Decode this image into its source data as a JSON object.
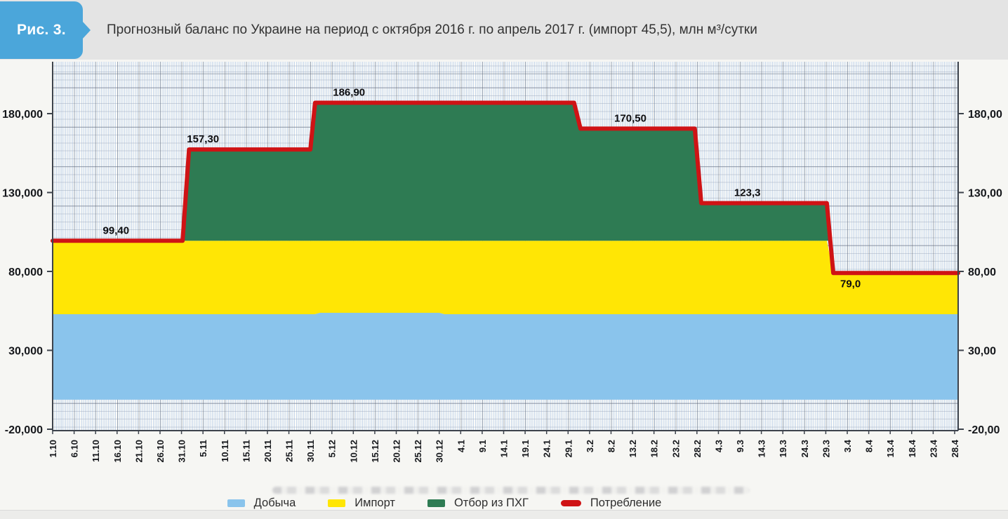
{
  "figure": {
    "badge": "Рис. 3.",
    "title": "Прогнозный баланс по Украине на период с октября 2016 г. по апрель 2017 г. (импорт 45,5), млн м³/сутки"
  },
  "colors": {
    "badge_blue": "#4ba6da",
    "header_bg": "#e4e4e4",
    "production_area": "#8ac4ec",
    "import_area": "#ffe605",
    "storage_area": "#2e7b53",
    "consumption_line": "#cf1315",
    "axis": "#3d434c"
  },
  "chart_data": {
    "type": "area",
    "title": "Прогнозный баланс по Украине на период с октября 2016 г. по апрель 2017 г. (импорт 45,5), млн м³/сутки",
    "unit": "млн м³/сутки",
    "grid": "graph-paper",
    "legend_position": "bottom",
    "x_tick_labels": [
      "1.10",
      "6.10",
      "11.10",
      "16.10",
      "21.10",
      "26.10",
      "31.10",
      "5.11",
      "10.11",
      "15.11",
      "20.11",
      "25.11",
      "30.11",
      "5.12",
      "10.12",
      "15.12",
      "20.12",
      "25.12",
      "30.12",
      "4.1",
      "9.1",
      "14.1",
      "19.1",
      "24.1",
      "29.1",
      "3.2",
      "8.2",
      "13.2",
      "18.2",
      "23.2",
      "28.2",
      "4.3",
      "9.3",
      "14.3",
      "19.3",
      "24.3",
      "29.3",
      "3.4",
      "8.4",
      "13.4",
      "18.4",
      "23.4",
      "28.4"
    ],
    "y_axis": {
      "tick_values": [
        180,
        130,
        80,
        30,
        -20
      ],
      "left_labels": [
        "180,000",
        "130,000",
        "80,000",
        "30,000",
        "-20,000"
      ],
      "right_labels": [
        "180,00",
        "130,00",
        "80,00",
        "30,00",
        "-20,00"
      ],
      "ylim": [
        -20,
        213
      ]
    },
    "series": [
      {
        "id": "production",
        "name": "Добыча",
        "type": "area",
        "color": "#8ac4ec",
        "top": [
          [
            0,
            52.9
          ],
          [
            12.2,
            52.9
          ],
          [
            12.45,
            53.8
          ],
          [
            18.0,
            53.8
          ],
          [
            18.25,
            52.9
          ],
          [
            42.16,
            52.9
          ]
        ],
        "bottom": [
          [
            0,
            -1.3
          ],
          [
            42.16,
            -1.3
          ]
        ]
      },
      {
        "id": "import",
        "name": "Импорт",
        "type": "area",
        "color": "#ffe605",
        "top": [
          [
            0,
            99.4
          ],
          [
            36.05,
            99.4
          ],
          [
            36.35,
            79
          ],
          [
            42.16,
            79
          ]
        ],
        "bottom": [
          [
            0,
            52.9
          ],
          [
            12.2,
            52.9
          ],
          [
            12.45,
            53.8
          ],
          [
            18.0,
            53.8
          ],
          [
            18.25,
            52.9
          ],
          [
            42.16,
            52.9
          ]
        ]
      },
      {
        "id": "storage",
        "name": "Отбор из ПХГ",
        "type": "area",
        "color": "#2e7b53",
        "top": [
          [
            6.05,
            99.4
          ],
          [
            6.35,
            157.3
          ],
          [
            12.0,
            157.3
          ],
          [
            12.22,
            186.9
          ],
          [
            24.28,
            186.9
          ],
          [
            24.58,
            170.5
          ],
          [
            29.9,
            170.5
          ],
          [
            30.2,
            123.3
          ],
          [
            36.05,
            123.3
          ],
          [
            36.21,
            99.4
          ]
        ],
        "bottom": [
          [
            6.05,
            99.4
          ],
          [
            36.21,
            99.4
          ]
        ]
      },
      {
        "id": "consumption",
        "name": "Потребление",
        "type": "line",
        "color": "#cf1315",
        "points": [
          [
            0,
            99.4
          ],
          [
            6.05,
            99.4
          ],
          [
            6.35,
            157.3
          ],
          [
            12.0,
            157.3
          ],
          [
            12.22,
            186.9
          ],
          [
            24.28,
            186.9
          ],
          [
            24.58,
            170.5
          ],
          [
            29.9,
            170.5
          ],
          [
            30.2,
            123.3
          ],
          [
            36.05,
            123.3
          ],
          [
            36.35,
            79
          ],
          [
            42.16,
            79
          ]
        ],
        "step_values": [
          {
            "from": "1.10",
            "to": "31.10",
            "value": 99.4
          },
          {
            "from": "31.10",
            "to": "30.11",
            "value": 157.3
          },
          {
            "from": "30.11",
            "to": "1.2",
            "value": 186.9
          },
          {
            "from": "1.2",
            "to": "28.2",
            "value": 170.5
          },
          {
            "from": "28.2",
            "to": "31.3",
            "value": 123.3
          },
          {
            "from": "31.3",
            "to": "28.4",
            "value": 79.0
          }
        ]
      }
    ],
    "annotations": [
      {
        "text": "99,40",
        "idx": 2.95,
        "value": 99.4,
        "position": "above"
      },
      {
        "text": "157,30",
        "idx": 7.0,
        "value": 157.3,
        "position": "above"
      },
      {
        "text": "186,90",
        "idx": 13.8,
        "value": 186.9,
        "position": "above"
      },
      {
        "text": "170,50",
        "idx": 26.9,
        "value": 170.5,
        "position": "above"
      },
      {
        "text": "123,3",
        "idx": 32.35,
        "value": 123.3,
        "position": "above"
      },
      {
        "text": "79,0",
        "idx": 37.15,
        "value": 79.0,
        "position": "below"
      }
    ]
  }
}
